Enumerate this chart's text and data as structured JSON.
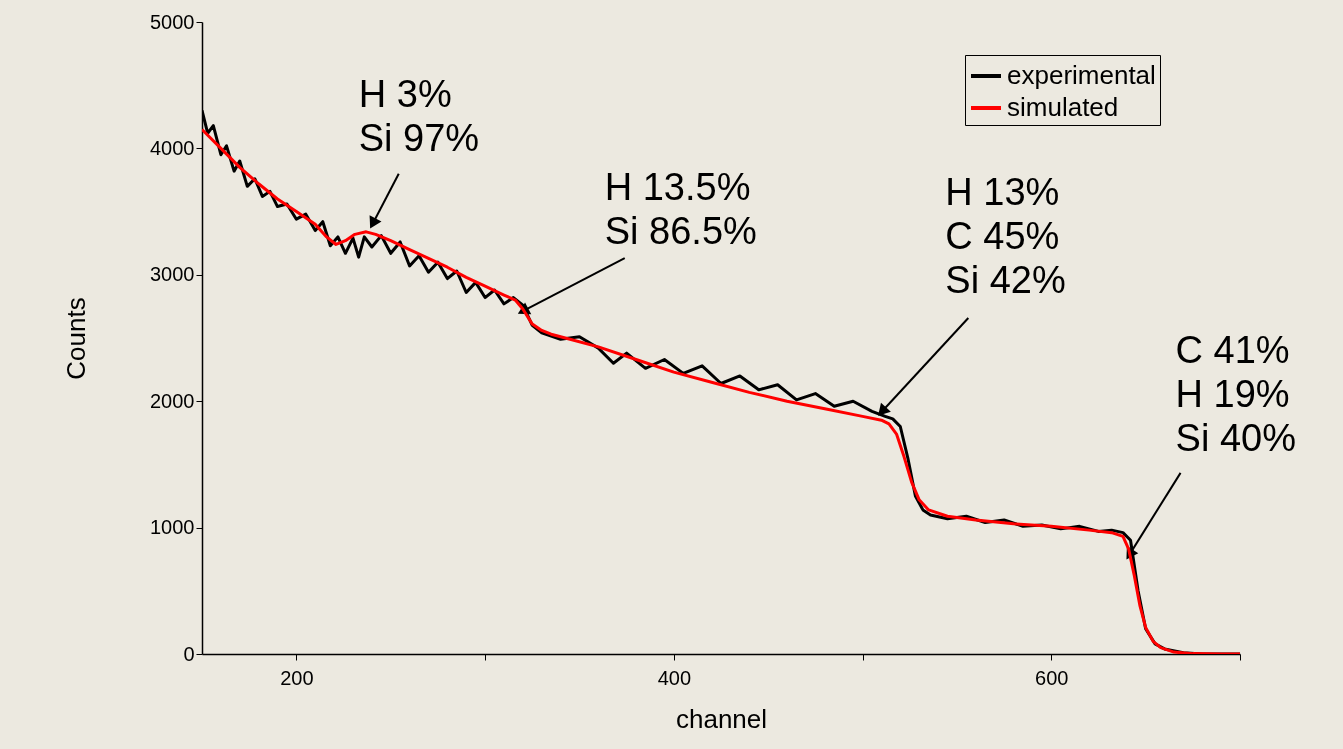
{
  "chart_data": {
    "type": "line",
    "xlabel": "channel",
    "ylabel": "Counts",
    "xlim": [
      150,
      700
    ],
    "ylim": [
      0,
      5000
    ],
    "xticks": [
      200,
      {
        "value": 300,
        "label": null
      },
      400,
      {
        "value": 500,
        "label": null
      },
      600,
      {
        "value": 700,
        "label": null
      }
    ],
    "yticks": [
      0,
      1000,
      2000,
      3000,
      4000,
      5000
    ],
    "grid": false,
    "legend": "top right",
    "line_style": "solid",
    "marker": "none",
    "series": [
      {
        "name": "experimental",
        "color": "#000000",
        "x": [
          150,
          153,
          156,
          160,
          163,
          167,
          170,
          174,
          178,
          182,
          186,
          190,
          195,
          200,
          205,
          210,
          214,
          218,
          222,
          226,
          230,
          233,
          236,
          240,
          245,
          250,
          255,
          260,
          265,
          270,
          275,
          280,
          285,
          290,
          295,
          300,
          305,
          310,
          315,
          320,
          325,
          330,
          340,
          350,
          360,
          368,
          375,
          385,
          395,
          405,
          415,
          425,
          435,
          445,
          455,
          465,
          475,
          485,
          495,
          505,
          512,
          516,
          520,
          524,
          528,
          532,
          536,
          545,
          555,
          565,
          575,
          585,
          595,
          605,
          615,
          625,
          632,
          638,
          642,
          646,
          650,
          655,
          660,
          670,
          680,
          690,
          700
        ],
        "values": [
          4300,
          4120,
          4180,
          3950,
          4020,
          3820,
          3900,
          3700,
          3760,
          3620,
          3660,
          3540,
          3560,
          3440,
          3480,
          3350,
          3420,
          3230,
          3300,
          3170,
          3290,
          3140,
          3300,
          3220,
          3310,
          3170,
          3260,
          3070,
          3150,
          3020,
          3100,
          2970,
          3030,
          2860,
          2940,
          2820,
          2880,
          2770,
          2820,
          2760,
          2600,
          2540,
          2490,
          2510,
          2420,
          2300,
          2380,
          2260,
          2330,
          2220,
          2280,
          2140,
          2200,
          2090,
          2130,
          2010,
          2060,
          1960,
          2000,
          1920,
          1880,
          1860,
          1800,
          1550,
          1250,
          1140,
          1100,
          1070,
          1090,
          1040,
          1060,
          1010,
          1020,
          990,
          1010,
          970,
          980,
          960,
          900,
          500,
          200,
          80,
          40,
          10,
          0,
          0,
          0
        ]
      },
      {
        "name": "simulated",
        "color": "#ff0000",
        "x": [
          150,
          160,
          170,
          180,
          190,
          200,
          210,
          216,
          221,
          226,
          231,
          237,
          242,
          250,
          260,
          270,
          280,
          290,
          300,
          310,
          316,
          320,
          325,
          330,
          335,
          345,
          360,
          380,
          400,
          420,
          440,
          460,
          480,
          500,
          510,
          514,
          518,
          522,
          526,
          530,
          535,
          545,
          560,
          580,
          600,
          620,
          632,
          638,
          641,
          644,
          647,
          650,
          654,
          658,
          665,
          675,
          690,
          700
        ],
        "values": [
          4150,
          4000,
          3850,
          3720,
          3600,
          3500,
          3400,
          3300,
          3240,
          3270,
          3320,
          3340,
          3320,
          3270,
          3200,
          3130,
          3060,
          2980,
          2910,
          2840,
          2800,
          2730,
          2610,
          2560,
          2530,
          2490,
          2430,
          2330,
          2230,
          2150,
          2070,
          2000,
          1940,
          1880,
          1850,
          1820,
          1740,
          1560,
          1360,
          1220,
          1140,
          1090,
          1060,
          1030,
          1010,
          980,
          960,
          930,
          830,
          620,
          380,
          210,
          100,
          50,
          15,
          3,
          0,
          0
        ]
      }
    ],
    "annotations": [
      {
        "text": "H 3%\nSi 97%",
        "x": 241,
        "y": 3420
      },
      {
        "text": "H 13.5%\nSi 86.5%",
        "x": 321,
        "y": 2720
      },
      {
        "text": "H 13%\nC 45%\nSi 42%",
        "x": 511,
        "y": 1930
      },
      {
        "text": "C 41%\nH 19%\nSi 40%",
        "x": 642,
        "y": 800
      }
    ]
  }
}
